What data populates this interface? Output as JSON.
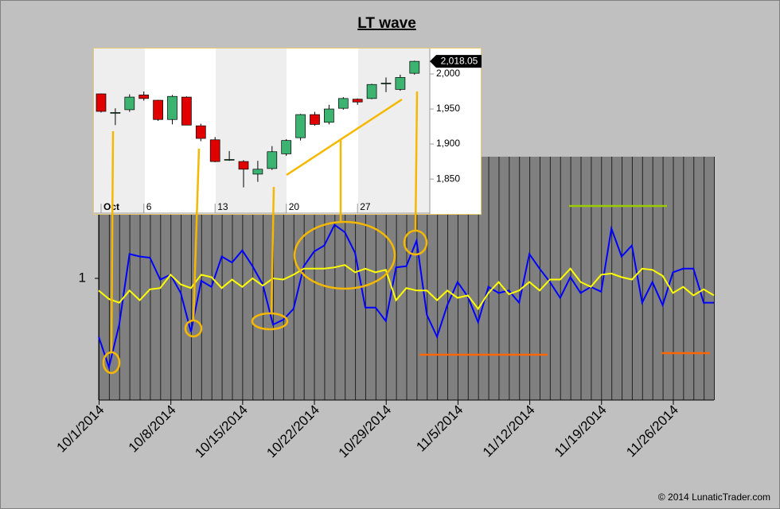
{
  "chart_data": [
    {
      "type": "line",
      "title": "LT wave",
      "categories": [
        "10/1/2014",
        null,
        null,
        null,
        null,
        null,
        null,
        "10/8/2014",
        null,
        null,
        null,
        null,
        null,
        null,
        "10/15/2014",
        null,
        null,
        null,
        null,
        null,
        null,
        "10/22/2014",
        null,
        null,
        null,
        null,
        null,
        null,
        "10/29/2014",
        null,
        null,
        null,
        null,
        null,
        null,
        "11/5/2014",
        null,
        null,
        null,
        null,
        null,
        null,
        "11/12/2014",
        null,
        null,
        null,
        null,
        null,
        null,
        "11/19/2014",
        null,
        null,
        null,
        null,
        null,
        null,
        "11/26/2014",
        null,
        null,
        null,
        null
      ],
      "series": [
        {
          "color": "#0000ff",
          "values": [
            0.52,
            0.27,
            0.62,
            1.2,
            1.18,
            1.17,
            0.99,
            1.03,
            0.88,
            0.56,
            0.98,
            0.93,
            1.18,
            1.13,
            1.23,
            1.1,
            0.95,
            0.62,
            0.66,
            0.75,
            1.1,
            1.22,
            1.27,
            1.44,
            1.38,
            1.21,
            0.76,
            0.76,
            0.65,
            1.09,
            1.1,
            1.31,
            0.7,
            0.52,
            0.78,
            0.97,
            0.85,
            0.64,
            0.93,
            0.88,
            0.9,
            0.8,
            1.2,
            1.08,
            0.97,
            0.84,
            1.01,
            0.88,
            0.93,
            0.89,
            1.41,
            1.18,
            1.27,
            0.8,
            0.97,
            0.78,
            1.05,
            1.08,
            1.08,
            0.8,
            0.8
          ]
        },
        {
          "color": "#ffff00",
          "values": [
            0.9,
            0.83,
            0.8,
            0.9,
            0.82,
            0.91,
            0.92,
            1.03,
            0.95,
            0.92,
            1.03,
            1.01,
            0.92,
            0.99,
            0.93,
            1.0,
            0.94,
            1.0,
            0.99,
            1.03,
            1.08,
            1.08,
            1.08,
            1.09,
            1.11,
            1.05,
            1.08,
            1.05,
            1.07,
            0.82,
            0.92,
            0.9,
            0.9,
            0.82,
            0.9,
            0.84,
            0.86,
            0.75,
            0.88,
            0.97,
            0.87,
            0.9,
            0.97,
            0.9,
            0.99,
            0.99,
            1.08,
            0.97,
            0.93,
            1.03,
            1.04,
            1.01,
            0.99,
            1.08,
            1.07,
            1.02,
            0.88,
            0.93,
            0.86,
            0.91,
            0.86
          ]
        }
      ],
      "ylim": [
        0,
        2
      ],
      "yticks": [
        1
      ],
      "background": "#808080"
    },
    {
      "type": "candlestick",
      "categories": [
        "Oct",
        null,
        null,
        "6",
        null,
        null,
        null,
        null,
        "13",
        null,
        null,
        null,
        null,
        "20",
        null,
        null,
        null,
        null,
        "27",
        null,
        null,
        null,
        null
      ],
      "open": [
        1971.6,
        1944,
        1949,
        1970,
        1962.5,
        1935,
        1967,
        1926,
        1906,
        1877,
        1875,
        1857,
        1865,
        1886,
        1909,
        1942,
        1931,
        1951,
        1964,
        1965,
        1986,
        1978,
        2001
      ],
      "high": [
        1972,
        1951,
        1971,
        1975,
        1963,
        1970,
        1968,
        1929,
        1910,
        1890,
        1877,
        1876,
        1897,
        1907,
        1943,
        1946,
        1956,
        1967,
        1965,
        1986,
        1995,
        1999,
        2019
      ],
      "low": [
        1945,
        1927,
        1946,
        1962,
        1933,
        1928,
        1927,
        1904,
        1874,
        1876,
        1838,
        1846,
        1863,
        1883,
        1905,
        1926,
        1928,
        1949,
        1956,
        1964,
        1974,
        1976,
        1999
      ],
      "close": [
        1946.6,
        1945,
        1967,
        1965,
        1935,
        1968,
        1927,
        1908,
        1875,
        1878,
        1864,
        1864,
        1889,
        1905,
        1942,
        1928,
        1950,
        1965,
        1960,
        1985,
        1987,
        1995,
        2018.05
      ],
      "up_color": "#3cb371",
      "down_color": "#e00000",
      "ylim": [
        1799,
        2037.5
      ],
      "yticks": [
        {
          "value": 1850,
          "label": "1,850"
        },
        {
          "value": 1900,
          "label": "1,900"
        },
        {
          "value": 1950,
          "label": "1,950"
        },
        {
          "value": 2000,
          "label": "2,000"
        }
      ],
      "last_price": {
        "value": 2018.05,
        "label": "2,018.05"
      }
    }
  ],
  "credit": "© 2014 LunaticTrader.com"
}
